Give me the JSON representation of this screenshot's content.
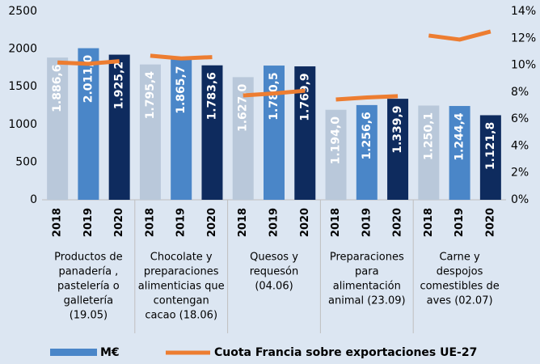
{
  "chart_data": {
    "type": "bar",
    "categories": [
      [
        "Productos de",
        "panadería ,",
        "pastelería o",
        "galletería",
        "(19.05)"
      ],
      [
        "Chocolate y",
        "preparaciones",
        "alimenticias que",
        "contengan",
        "cacao  (18.06)"
      ],
      [
        "Quesos y",
        "requesón",
        "(04.06)"
      ],
      [
        "Preparaciones",
        "para",
        "alimentación",
        "animal  (23.09)"
      ],
      [
        "Carne y",
        "despojos",
        "comestibles de",
        "aves (02.07)"
      ]
    ],
    "subcategories": [
      "2018",
      "2019",
      "2020"
    ],
    "series": [
      {
        "name": "M€",
        "color": "#4a86c8",
        "colors": [
          "#b9c8da",
          "#4a86c8",
          "#0e2b5e"
        ],
        "values": [
          [
            1886.6,
            2011.0,
            1925.2
          ],
          [
            1795.4,
            1865.7,
            1783.6
          ],
          [
            1627.0,
            1780.5,
            1769.9
          ],
          [
            1194.0,
            1256.6,
            1339.9
          ],
          [
            1250.1,
            1244.4,
            1121.8
          ]
        ],
        "value_labels": [
          [
            "1.886,6",
            "2.011,0",
            "1.925,2"
          ],
          [
            "1.795,4",
            "1.865,7",
            "1.783,6"
          ],
          [
            "1.627,0",
            "1.780,5",
            "1.769,9"
          ],
          [
            "1.194,0",
            "1.256,6",
            "1.339,9"
          ],
          [
            "1.250,1",
            "1.244,4",
            "1.121,8"
          ]
        ]
      },
      {
        "name": "Cuota Francia sobre exportaciones UE-27",
        "color": "#ed7d31",
        "type": "line",
        "axis": "y2",
        "values": [
          [
            10.2,
            10.1,
            10.3
          ],
          [
            10.7,
            10.5,
            10.6
          ],
          [
            7.75,
            7.9,
            8.1
          ],
          [
            7.45,
            7.6,
            7.7
          ],
          [
            12.2,
            11.9,
            12.5
          ]
        ]
      }
    ],
    "ylim": [
      0,
      2500
    ],
    "yticks": [
      0,
      500,
      1000,
      1500,
      2000,
      2500
    ],
    "y2lim": [
      0,
      14
    ],
    "y2ticks": [
      {
        "value": 0,
        "label": "0%"
      },
      {
        "value": 2,
        "label": "2%"
      },
      {
        "value": 4,
        "label": "4%"
      },
      {
        "value": 6,
        "label": "6%"
      },
      {
        "value": 8,
        "label": "8%"
      },
      {
        "value": 10,
        "label": "10%"
      },
      {
        "value": 12,
        "label": "12%"
      },
      {
        "value": 14,
        "label": "14%"
      }
    ],
    "grid": false,
    "legend": "bottom"
  }
}
